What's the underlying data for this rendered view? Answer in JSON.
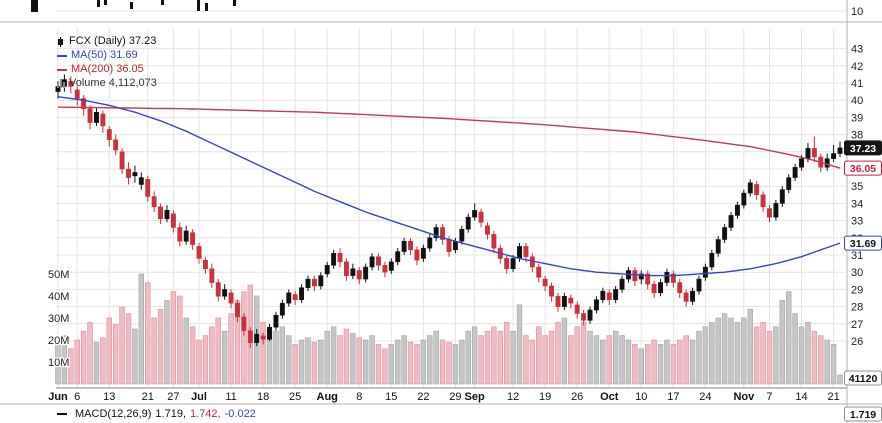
{
  "legend": {
    "title": "FCX (Daily) 37.23",
    "ma50": "MA(50) 31.69",
    "ma200": "MA(200) 36.05",
    "volume": "Volume 4,112,073"
  },
  "macd_legend": {
    "name": "MACD(12,26,9)",
    "macd_value": "1.719,",
    "signal_value": "1.742,",
    "hist_value": "-0.022"
  },
  "colors": {
    "background": "#ffffff",
    "grid": "#e4e4e4",
    "divider": "#b3b3b3",
    "axis_line": "#7d7d7d",
    "text": "#222222",
    "candle_up": "#111111",
    "candle_down": "#c9323c",
    "vol_up": "#c6c6c6",
    "vol_up_border": "#a3a3a3",
    "vol_down": "#f0bcc3",
    "vol_down_border": "#d9909c",
    "ma50": "#3347c4",
    "ma200": "#c23b53",
    "badge_red": "#cc2236"
  },
  "chart_data": {
    "type": "candlestick",
    "symbol": "FCX",
    "timeframe": "Daily",
    "last_price": 37.23,
    "ma50_value": 31.69,
    "ma200_value": 36.05,
    "volume_shown": "4,112,073",
    "top_panel_label": "10",
    "price_axis_range": [
      26,
      43
    ],
    "price_axis_labels": [
      43,
      42,
      41,
      40,
      39,
      38,
      35,
      34,
      33,
      32,
      31,
      30,
      29,
      28,
      27,
      26
    ],
    "volume_axis_labels": [
      {
        "label": "50M",
        "value": 50
      },
      {
        "label": "40M",
        "value": 40
      },
      {
        "label": "30M",
        "value": 30
      },
      {
        "label": "20M",
        "value": 20
      },
      {
        "label": "10M",
        "value": 10
      }
    ],
    "x_ticks": [
      {
        "label": "Jun",
        "i": 0,
        "bold": true
      },
      {
        "label": "6",
        "i": 3,
        "bold": false
      },
      {
        "label": "13",
        "i": 8,
        "bold": false
      },
      {
        "label": "21",
        "i": 14,
        "bold": false
      },
      {
        "label": "27",
        "i": 18,
        "bold": false
      },
      {
        "label": "Jul",
        "i": 22,
        "bold": true
      },
      {
        "label": "11",
        "i": 27,
        "bold": false
      },
      {
        "label": "18",
        "i": 32,
        "bold": false
      },
      {
        "label": "25",
        "i": 37,
        "bold": false
      },
      {
        "label": "Aug",
        "i": 42,
        "bold": true
      },
      {
        "label": "8",
        "i": 47,
        "bold": false
      },
      {
        "label": "15",
        "i": 52,
        "bold": false
      },
      {
        "label": "22",
        "i": 57,
        "bold": false
      },
      {
        "label": "29",
        "i": 62,
        "bold": false
      },
      {
        "label": "Sep",
        "i": 65,
        "bold": true
      },
      {
        "label": "12",
        "i": 71,
        "bold": false
      },
      {
        "label": "19",
        "i": 76,
        "bold": false
      },
      {
        "label": "26",
        "i": 81,
        "bold": false
      },
      {
        "label": "Oct",
        "i": 86,
        "bold": true
      },
      {
        "label": "10",
        "i": 91,
        "bold": false
      },
      {
        "label": "17",
        "i": 96,
        "bold": false
      },
      {
        "label": "24",
        "i": 101,
        "bold": false
      },
      {
        "label": "Nov",
        "i": 107,
        "bold": true
      },
      {
        "label": "7",
        "i": 111,
        "bold": false
      },
      {
        "label": "14",
        "i": 116,
        "bold": false
      },
      {
        "label": "21",
        "i": 121,
        "bold": false
      }
    ],
    "candles": [
      [
        40.5,
        41.1,
        40.1,
        40.8,
        18
      ],
      [
        40.8,
        41.5,
        40.5,
        41.2,
        22
      ],
      [
        41.1,
        41.4,
        40.4,
        40.8,
        16
      ],
      [
        40.6,
        40.8,
        39.7,
        40.1,
        20
      ],
      [
        40.1,
        40.3,
        39.1,
        39.5,
        24
      ],
      [
        39.5,
        39.7,
        38.3,
        38.7,
        28
      ],
      [
        38.7,
        39.6,
        38.5,
        39.3,
        19
      ],
      [
        39.2,
        39.4,
        38.1,
        38.5,
        21
      ],
      [
        38.3,
        38.5,
        37.3,
        37.7,
        30
      ],
      [
        37.7,
        38.0,
        36.8,
        37.1,
        27
      ],
      [
        37.0,
        37.2,
        35.7,
        36.0,
        35
      ],
      [
        36.0,
        36.4,
        35.1,
        35.5,
        32
      ],
      [
        35.6,
        36.2,
        35.2,
        35.8,
        25
      ],
      [
        35.1,
        35.8,
        34.8,
        35.5,
        50
      ],
      [
        35.4,
        35.6,
        34.1,
        34.4,
        46
      ],
      [
        34.4,
        34.7,
        33.5,
        33.8,
        30
      ],
      [
        33.8,
        34.0,
        32.8,
        33.1,
        34
      ],
      [
        33.1,
        33.9,
        32.9,
        33.6,
        38
      ],
      [
        33.4,
        33.6,
        32.3,
        32.6,
        42
      ],
      [
        32.6,
        32.9,
        31.5,
        31.8,
        40
      ],
      [
        31.8,
        32.7,
        31.6,
        32.4,
        30
      ],
      [
        32.3,
        32.5,
        31.3,
        31.6,
        26
      ],
      [
        31.5,
        31.7,
        30.5,
        30.8,
        20
      ],
      [
        30.7,
        30.9,
        29.9,
        30.2,
        22
      ],
      [
        30.2,
        30.5,
        29.1,
        29.4,
        26
      ],
      [
        29.4,
        29.6,
        28.3,
        28.6,
        30
      ],
      [
        28.6,
        29.3,
        28.4,
        29.0,
        24
      ],
      [
        28.8,
        29.0,
        27.9,
        28.2,
        32
      ],
      [
        28.2,
        28.4,
        27.1,
        27.4,
        38
      ],
      [
        27.4,
        27.6,
        26.3,
        26.6,
        42
      ],
      [
        26.6,
        26.8,
        25.6,
        25.9,
        45
      ],
      [
        25.9,
        26.7,
        25.7,
        26.4,
        40
      ],
      [
        26.3,
        26.5,
        25.8,
        26.1,
        28
      ],
      [
        26.1,
        27.0,
        26.0,
        26.8,
        25
      ],
      [
        26.8,
        27.7,
        26.6,
        27.5,
        24
      ],
      [
        27.5,
        28.4,
        27.3,
        28.2,
        26
      ],
      [
        28.2,
        29.0,
        28.0,
        28.8,
        22
      ],
      [
        28.7,
        28.9,
        28.1,
        28.4,
        18
      ],
      [
        28.4,
        29.3,
        28.2,
        29.1,
        20
      ],
      [
        29.1,
        29.8,
        28.9,
        29.6,
        21
      ],
      [
        29.6,
        29.8,
        28.9,
        29.2,
        19
      ],
      [
        29.2,
        30.0,
        29.0,
        29.8,
        20
      ],
      [
        29.9,
        30.6,
        29.7,
        30.4,
        24
      ],
      [
        30.4,
        31.3,
        30.2,
        31.1,
        26
      ],
      [
        31.1,
        31.4,
        30.3,
        30.6,
        22
      ],
      [
        30.6,
        30.8,
        29.5,
        29.8,
        25
      ],
      [
        29.8,
        30.5,
        29.6,
        30.2,
        23
      ],
      [
        30.1,
        30.3,
        29.3,
        29.6,
        21
      ],
      [
        29.6,
        30.5,
        29.4,
        30.3,
        20
      ],
      [
        30.3,
        31.1,
        30.1,
        30.9,
        22
      ],
      [
        30.9,
        31.1,
        30.1,
        30.4,
        18
      ],
      [
        30.4,
        30.6,
        29.7,
        30.0,
        16
      ],
      [
        30.1,
        30.8,
        29.9,
        30.6,
        18
      ],
      [
        30.6,
        31.4,
        30.4,
        31.2,
        20
      ],
      [
        31.2,
        32.0,
        31.0,
        31.8,
        22
      ],
      [
        31.8,
        32.0,
        31.0,
        31.3,
        19
      ],
      [
        31.3,
        31.5,
        30.4,
        30.7,
        18
      ],
      [
        30.8,
        31.6,
        30.6,
        31.4,
        20
      ],
      [
        31.4,
        32.2,
        31.2,
        32.0,
        22
      ],
      [
        32.0,
        32.8,
        31.8,
        32.6,
        24
      ],
      [
        32.6,
        32.8,
        31.6,
        31.9,
        20
      ],
      [
        31.9,
        32.1,
        30.9,
        31.2,
        19
      ],
      [
        31.3,
        32.0,
        31.1,
        31.8,
        18
      ],
      [
        31.8,
        32.7,
        31.6,
        32.5,
        20
      ],
      [
        32.5,
        33.4,
        32.3,
        33.2,
        24
      ],
      [
        33.2,
        34.0,
        33.0,
        33.6,
        26
      ],
      [
        33.5,
        33.7,
        32.6,
        32.9,
        22
      ],
      [
        32.7,
        32.9,
        31.9,
        32.2,
        24
      ],
      [
        32.2,
        32.4,
        31.1,
        31.4,
        26
      ],
      [
        31.4,
        31.6,
        30.5,
        30.8,
        24
      ],
      [
        30.8,
        31.0,
        29.9,
        30.2,
        28
      ],
      [
        30.2,
        31.0,
        30.0,
        30.8,
        24
      ],
      [
        30.8,
        31.7,
        30.6,
        31.5,
        36
      ],
      [
        31.5,
        31.7,
        30.6,
        30.9,
        22
      ],
      [
        30.9,
        31.1,
        30.0,
        30.3,
        20
      ],
      [
        30.3,
        30.5,
        29.4,
        29.7,
        26
      ],
      [
        29.6,
        29.8,
        28.9,
        29.2,
        22
      ],
      [
        29.2,
        29.4,
        28.3,
        28.6,
        24
      ],
      [
        28.6,
        28.8,
        27.7,
        28.0,
        28
      ],
      [
        28.0,
        28.8,
        27.8,
        28.6,
        30
      ],
      [
        28.5,
        28.7,
        27.9,
        28.2,
        22
      ],
      [
        28.1,
        28.3,
        27.3,
        27.6,
        26
      ],
      [
        27.6,
        27.8,
        26.9,
        27.2,
        28
      ],
      [
        27.2,
        28.0,
        27.0,
        27.8,
        24
      ],
      [
        27.8,
        28.6,
        27.6,
        28.4,
        22
      ],
      [
        28.4,
        29.1,
        28.2,
        28.9,
        20
      ],
      [
        28.8,
        29.0,
        28.1,
        28.4,
        22
      ],
      [
        28.4,
        29.2,
        28.2,
        29.0,
        24
      ],
      [
        29.0,
        29.8,
        28.8,
        29.6,
        22
      ],
      [
        29.6,
        30.3,
        29.4,
        30.1,
        20
      ],
      [
        30.1,
        30.3,
        29.2,
        29.5,
        18
      ],
      [
        29.6,
        30.1,
        29.3,
        29.9,
        16
      ],
      [
        29.9,
        30.1,
        29.0,
        29.3,
        18
      ],
      [
        29.3,
        29.5,
        28.5,
        28.8,
        20
      ],
      [
        28.8,
        29.6,
        28.6,
        29.4,
        18
      ],
      [
        29.4,
        30.2,
        29.2,
        30.0,
        20
      ],
      [
        29.9,
        30.1,
        29.1,
        29.4,
        18
      ],
      [
        29.4,
        29.6,
        28.5,
        28.8,
        20
      ],
      [
        28.8,
        29.0,
        28.0,
        28.3,
        22
      ],
      [
        28.3,
        29.1,
        28.1,
        28.9,
        20
      ],
      [
        28.9,
        29.8,
        28.7,
        29.6,
        24
      ],
      [
        29.7,
        30.5,
        29.5,
        30.3,
        26
      ],
      [
        30.3,
        31.3,
        30.1,
        31.1,
        28
      ],
      [
        31.1,
        32.1,
        30.9,
        31.9,
        30
      ],
      [
        31.9,
        32.8,
        31.7,
        32.6,
        32
      ],
      [
        32.6,
        33.5,
        32.4,
        33.3,
        30
      ],
      [
        33.3,
        34.1,
        33.1,
        33.9,
        28
      ],
      [
        33.9,
        34.8,
        33.7,
        34.6,
        30
      ],
      [
        34.6,
        35.4,
        34.4,
        35.2,
        34
      ],
      [
        35.1,
        35.3,
        34.2,
        34.5,
        26
      ],
      [
        34.5,
        34.7,
        33.5,
        33.8,
        28
      ],
      [
        33.7,
        33.9,
        32.9,
        33.2,
        24
      ],
      [
        33.2,
        34.2,
        33.0,
        34.0,
        26
      ],
      [
        34.0,
        35.0,
        33.8,
        34.8,
        38
      ],
      [
        34.8,
        35.7,
        34.6,
        35.5,
        42
      ],
      [
        35.5,
        36.3,
        35.3,
        36.1,
        32
      ],
      [
        36.1,
        36.8,
        35.9,
        36.6,
        26
      ],
      [
        36.6,
        37.5,
        36.4,
        37.2,
        28
      ],
      [
        37.2,
        37.9,
        36.4,
        36.7,
        24
      ],
      [
        36.7,
        36.9,
        35.8,
        36.1,
        22
      ],
      [
        36.1,
        36.9,
        35.9,
        36.6,
        20
      ],
      [
        36.6,
        37.4,
        36.4,
        36.9,
        18
      ],
      [
        36.9,
        37.6,
        36.7,
        37.23,
        4.1
      ]
    ],
    "ma50_points": [
      [
        0,
        40.2
      ],
      [
        4,
        40.0
      ],
      [
        8,
        39.7
      ],
      [
        12,
        39.3
      ],
      [
        16,
        38.8
      ],
      [
        20,
        38.2
      ],
      [
        24,
        37.5
      ],
      [
        28,
        36.8
      ],
      [
        32,
        36.1
      ],
      [
        36,
        35.4
      ],
      [
        40,
        34.7
      ],
      [
        44,
        34.1
      ],
      [
        48,
        33.5
      ],
      [
        52,
        33.0
      ],
      [
        56,
        32.5
      ],
      [
        60,
        32.0
      ],
      [
        64,
        31.6
      ],
      [
        68,
        31.2
      ],
      [
        72,
        30.8
      ],
      [
        76,
        30.5
      ],
      [
        80,
        30.2
      ],
      [
        84,
        30.0
      ],
      [
        88,
        29.9
      ],
      [
        92,
        29.8
      ],
      [
        96,
        29.8
      ],
      [
        100,
        29.9
      ],
      [
        104,
        30.0
      ],
      [
        108,
        30.2
      ],
      [
        112,
        30.5
      ],
      [
        116,
        30.9
      ],
      [
        119,
        31.3
      ],
      [
        122,
        31.69
      ]
    ],
    "ma200_points": [
      [
        0,
        39.6
      ],
      [
        20,
        39.5
      ],
      [
        40,
        39.3
      ],
      [
        60,
        38.95
      ],
      [
        75,
        38.6
      ],
      [
        90,
        38.15
      ],
      [
        100,
        37.7
      ],
      [
        108,
        37.3
      ],
      [
        114,
        36.85
      ],
      [
        118,
        36.5
      ],
      [
        122,
        36.05
      ]
    ],
    "badges": [
      {
        "text": "37.23",
        "value": 37.23,
        "variant": "solid-black"
      },
      {
        "text": "36.05",
        "value": 36.05,
        "variant": "outline-red"
      },
      {
        "text": "31.69",
        "value": 31.69,
        "variant": "outline-blue"
      },
      {
        "text": "41120",
        "y": 378,
        "variant": "outline-gray"
      },
      {
        "text": "1.719",
        "y": 414,
        "variant": "outline-gray"
      }
    ],
    "macd": {
      "params": [
        12,
        26,
        9
      ],
      "macd": 1.719,
      "signal": 1.742,
      "histogram": -0.022
    }
  }
}
